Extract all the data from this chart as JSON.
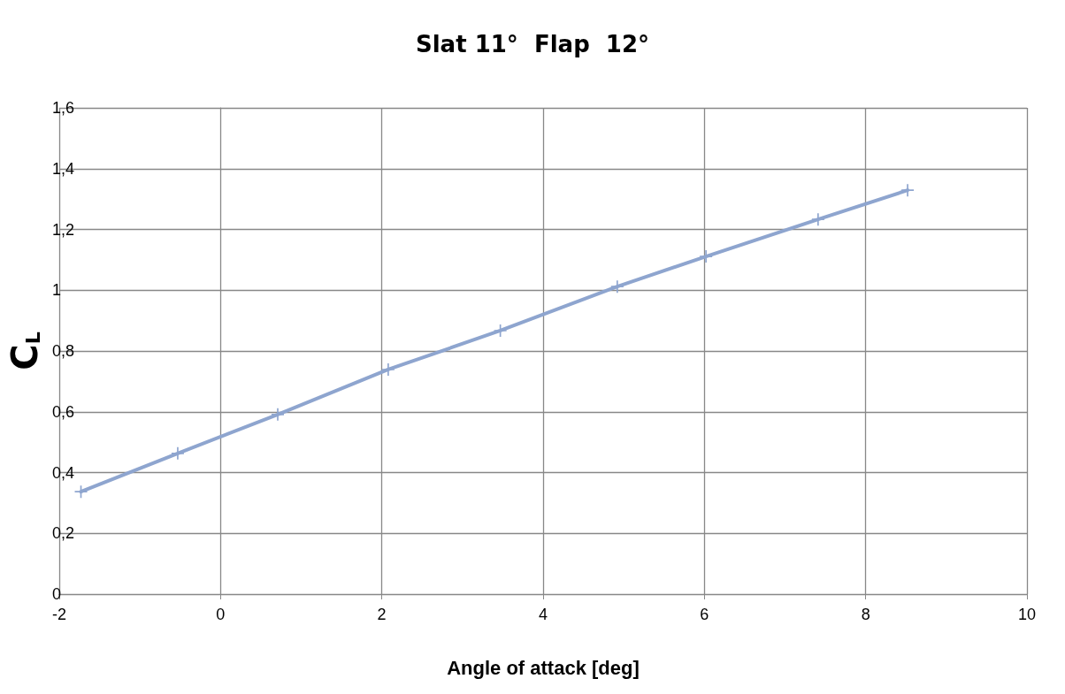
{
  "chart_data": {
    "type": "line",
    "title": "Slat 11°  Flap  12°",
    "xlabel": "Angle of attack [deg]",
    "ylabel": "C$_{L}$",
    "x": [
      -1.73,
      -0.53,
      0.71,
      2.08,
      3.47,
      4.92,
      6.02,
      7.41,
      8.52
    ],
    "series": [
      {
        "color": "#8ea5cf",
        "values": [
          0.337,
          0.463,
          0.591,
          0.739,
          0.867,
          1.012,
          1.111,
          1.233,
          1.329
        ]
      }
    ],
    "xlim": [
      -2,
      10
    ],
    "xticks": [
      -2,
      0,
      2,
      4,
      6,
      8,
      10
    ],
    "ylim": [
      0,
      1.6
    ],
    "yticks": [
      0,
      {
        "value": 0.2,
        "label": "0,2"
      },
      {
        "value": 0.4,
        "label": "0,4"
      },
      {
        "value": 0.6,
        "label": "0,6"
      },
      {
        "value": 0.8,
        "label": "0,8"
      },
      1,
      {
        "value": 1.2,
        "label": "1,2"
      },
      {
        "value": 1.4,
        "label": "1,4"
      },
      {
        "value": 1.6,
        "label": "1,6"
      }
    ],
    "grid": true,
    "marker": "cross",
    "line_style": "solid"
  }
}
